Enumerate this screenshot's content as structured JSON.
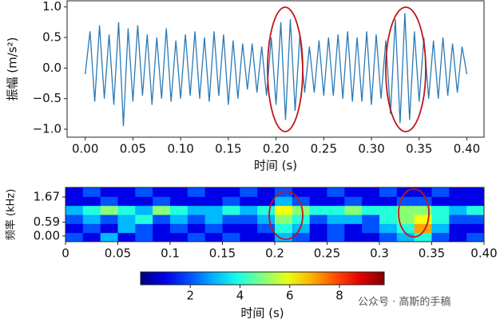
{
  "chart_data": [
    {
      "type": "line",
      "ylabel": "振幅 (m/s²)",
      "xlabel": "时间 (s)",
      "color": "#2a7ab8",
      "x": [
        0,
        0.005,
        0.01,
        0.015,
        0.02,
        0.025,
        0.03,
        0.035,
        0.04,
        0.045,
        0.05,
        0.055,
        0.06,
        0.065,
        0.07,
        0.075,
        0.08,
        0.085,
        0.09,
        0.095,
        0.1,
        0.105,
        0.11,
        0.115,
        0.12,
        0.125,
        0.13,
        0.135,
        0.14,
        0.145,
        0.15,
        0.155,
        0.16,
        0.165,
        0.17,
        0.175,
        0.18,
        0.185,
        0.19,
        0.195,
        0.2,
        0.205,
        0.21,
        0.215,
        0.22,
        0.225,
        0.23,
        0.235,
        0.24,
        0.245,
        0.25,
        0.255,
        0.26,
        0.265,
        0.27,
        0.275,
        0.28,
        0.285,
        0.29,
        0.295,
        0.3,
        0.305,
        0.31,
        0.315,
        0.32,
        0.325,
        0.33,
        0.335,
        0.34,
        0.345,
        0.35,
        0.355,
        0.36,
        0.365,
        0.37,
        0.375,
        0.38,
        0.385,
        0.39,
        0.395,
        0.4
      ],
      "values": [
        -0.1,
        0.6,
        -0.55,
        0.7,
        -0.5,
        0.55,
        -0.6,
        0.75,
        -0.95,
        0.65,
        -0.55,
        0.7,
        -0.45,
        0.55,
        -0.6,
        0.5,
        -0.5,
        0.65,
        -0.55,
        0.45,
        -0.5,
        0.55,
        -0.45,
        0.6,
        -0.5,
        0.5,
        -0.55,
        0.6,
        -0.45,
        0.55,
        -0.6,
        0.45,
        -0.5,
        0.4,
        -0.35,
        0.4,
        -0.4,
        0.35,
        -0.45,
        0.5,
        -0.6,
        0.75,
        -0.85,
        0.8,
        -0.7,
        0.55,
        -0.4,
        0.35,
        -0.4,
        0.45,
        -0.45,
        0.5,
        -0.45,
        0.55,
        -0.5,
        0.6,
        -0.55,
        0.5,
        -0.55,
        0.6,
        -0.6,
        0.55,
        -0.5,
        0.45,
        -0.75,
        0.8,
        -0.9,
        0.9,
        -0.85,
        0.6,
        -0.55,
        0.5,
        -0.5,
        0.45,
        -0.5,
        0.5,
        -0.45,
        0.4,
        -0.4,
        0.35,
        -0.1
      ],
      "xlim": [
        -0.019,
        0.418
      ],
      "ylim": [
        -1.13,
        1.1
      ],
      "xticks": [
        {
          "value": 0,
          "label": "0.00"
        },
        0.05,
        {
          "value": 0.1,
          "label": "0.10"
        },
        0.15,
        {
          "value": 0.2,
          "label": "0.20"
        },
        0.25,
        {
          "value": 0.3,
          "label": "0.30"
        },
        0.35,
        {
          "value": 0.4,
          "label": "0.40"
        }
      ],
      "yticks": [
        {
          "value": -1,
          "label": "−1.0"
        },
        {
          "value": -0.5,
          "label": "−0.5"
        },
        {
          "value": 0,
          "label": "0.0"
        },
        {
          "value": 0.5,
          "label": "0.5"
        },
        {
          "value": 1,
          "label": "1.0"
        }
      ]
    },
    {
      "type": "heatmap",
      "ylabel": "频率 (kHz)",
      "colormap": "jet",
      "xlim": [
        0,
        0.4
      ],
      "ylim": [
        -0.24,
        2.08
      ],
      "xticks": [
        0,
        0.05,
        0.1,
        0.15,
        0.2,
        0.25,
        0.3,
        0.35,
        {
          "value": 0.4,
          "label": "0.40"
        }
      ],
      "yticks": [
        {
          "value": 0,
          "label": "0.00"
        },
        0.59,
        1.67
      ],
      "z": [
        [
          2,
          1,
          3,
          1,
          2,
          1,
          1,
          2,
          1,
          2,
          1,
          1,
          3,
          2,
          1,
          2,
          1,
          1,
          2,
          3,
          4,
          2,
          1,
          2
        ],
        [
          1,
          2,
          1,
          3,
          2,
          1,
          2,
          1,
          2,
          1,
          1,
          2,
          4,
          3,
          1,
          2,
          1,
          2,
          3,
          4,
          7,
          3,
          1,
          1
        ],
        [
          2,
          3,
          2,
          3,
          4,
          2,
          3,
          2,
          3,
          2,
          2,
          3,
          5,
          4,
          2,
          3,
          3,
          2,
          4,
          5,
          6,
          4,
          2,
          2
        ],
        [
          3,
          4,
          5,
          4,
          3,
          5,
          4,
          3,
          3,
          4,
          3,
          4,
          6,
          5,
          4,
          4,
          5,
          4,
          4,
          5,
          5,
          4,
          3,
          4
        ],
        [
          1,
          1,
          2,
          1,
          1,
          2,
          1,
          1,
          1,
          2,
          1,
          1,
          3,
          2,
          1,
          1,
          2,
          1,
          1,
          2,
          2,
          1,
          1,
          1
        ],
        [
          1,
          2,
          1,
          1,
          2,
          1,
          1,
          2,
          1,
          1,
          2,
          1,
          2,
          1,
          1,
          2,
          1,
          1,
          2,
          1,
          1,
          2,
          1,
          1
        ]
      ],
      "colorbar": {
        "clim": [
          0,
          9.8
        ],
        "ticks": [
          2,
          4,
          6,
          8
        ],
        "label": "时间 (s)"
      }
    }
  ],
  "watermark": "公众号 · 高斯的手稿"
}
